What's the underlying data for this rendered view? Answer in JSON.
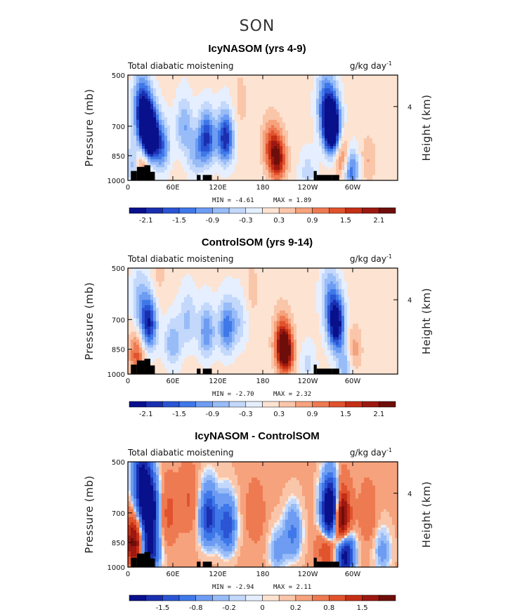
{
  "main_title": "SON",
  "chart_data": [
    {
      "type": "heatmap",
      "title": "IcyNASOM (yrs 4-9)",
      "left_label": "Total diabatic moistening",
      "units_base": "g/kg day",
      "units_exp": "-1",
      "ylabel": "Pressure (mb)",
      "ylabel_right": "Height (km)",
      "x_ticks": [
        "0",
        "60E",
        "120E",
        "180",
        "120W",
        "60W"
      ],
      "y_ticks": [
        "500",
        "700",
        "850",
        "1000"
      ],
      "right_ticks": [
        "4"
      ],
      "min_text": "MIN =   -4.61",
      "max_text": "MAX =    1.89",
      "colorbar_labels": [
        "-2.1",
        "-1.5",
        "-0.9",
        "-0.3",
        "0.3",
        "0.9",
        "1.5",
        "2.1"
      ],
      "blobs": [
        {
          "lon": 28,
          "p": 740,
          "value": -4.6
        },
        {
          "lon": 18,
          "p": 620,
          "value": -2.0
        },
        {
          "lon": 8,
          "p": 900,
          "value": -1.0
        },
        {
          "lon": 20,
          "p": 880,
          "value": 1.4
        },
        {
          "lon": 45,
          "p": 800,
          "value": -1.5
        },
        {
          "lon": 75,
          "p": 700,
          "value": -1.0
        },
        {
          "lon": 105,
          "p": 760,
          "value": -2.0
        },
        {
          "lon": 130,
          "p": 760,
          "value": -2.2
        },
        {
          "lon": 90,
          "p": 850,
          "value": -0.8
        },
        {
          "lon": 200,
          "p": 870,
          "value": 1.9
        },
        {
          "lon": 190,
          "p": 790,
          "value": 1.0
        },
        {
          "lon": 272,
          "p": 700,
          "value": -4.0
        },
        {
          "lon": 262,
          "p": 600,
          "value": -1.2
        },
        {
          "lon": 287,
          "p": 870,
          "value": 1.3
        },
        {
          "lon": 297,
          "p": 930,
          "value": -1.8
        },
        {
          "lon": 240,
          "p": 950,
          "value": -0.6
        },
        {
          "lon": 150,
          "p": 600,
          "value": 0.3
        },
        {
          "lon": 320,
          "p": 880,
          "value": 0.5
        }
      ]
    },
    {
      "type": "heatmap",
      "title": "ControlSOM (yrs 9-14)",
      "left_label": "Total diabatic moistening",
      "units_base": "g/kg day",
      "units_exp": "-1",
      "ylabel": "Pressure (mb)",
      "ylabel_right": "Height (km)",
      "x_ticks": [
        "0",
        "60E",
        "120E",
        "180",
        "120W",
        "60W"
      ],
      "y_ticks": [
        "500",
        "700",
        "850",
        "1000"
      ],
      "right_ticks": [
        "4"
      ],
      "min_text": "MIN =   -2.70",
      "max_text": "MAX =    2.32",
      "colorbar_labels": [
        "-2.1",
        "-1.5",
        "-0.9",
        "-0.3",
        "0.3",
        "0.9",
        "1.5",
        "2.1"
      ],
      "blobs": [
        {
          "lon": 28,
          "p": 720,
          "value": -2.2
        },
        {
          "lon": 15,
          "p": 620,
          "value": -0.8
        },
        {
          "lon": 12,
          "p": 880,
          "value": 1.2
        },
        {
          "lon": 60,
          "p": 820,
          "value": -1.0
        },
        {
          "lon": 80,
          "p": 700,
          "value": -0.8
        },
        {
          "lon": 105,
          "p": 760,
          "value": -1.3
        },
        {
          "lon": 132,
          "p": 740,
          "value": -1.5
        },
        {
          "lon": 150,
          "p": 700,
          "value": -0.6
        },
        {
          "lon": 210,
          "p": 870,
          "value": 2.3
        },
        {
          "lon": 205,
          "p": 790,
          "value": 1.0
        },
        {
          "lon": 278,
          "p": 720,
          "value": -2.7
        },
        {
          "lon": 268,
          "p": 600,
          "value": -0.9
        },
        {
          "lon": 300,
          "p": 860,
          "value": 0.8
        },
        {
          "lon": 290,
          "p": 940,
          "value": -1.1
        },
        {
          "lon": 240,
          "p": 940,
          "value": -0.5
        },
        {
          "lon": 165,
          "p": 580,
          "value": 0.3
        },
        {
          "lon": 40,
          "p": 540,
          "value": 0.3
        }
      ]
    },
    {
      "type": "heatmap",
      "title": "IcyNASOM - ControlSOM",
      "left_label": "Total diabatic moistening",
      "units_base": "g/kg day",
      "units_exp": "-1",
      "ylabel": "Pressure (mb)",
      "ylabel_right": "Height (km)",
      "x_ticks": [
        "0",
        "60E",
        "120E",
        "180",
        "120W",
        "60W"
      ],
      "y_ticks": [
        "500",
        "700",
        "850",
        "1000"
      ],
      "right_ticks": [
        "4"
      ],
      "min_text": "MIN =   -2.94",
      "max_text": "MAX =    2.11",
      "colorbar_labels": [
        "-1.5",
        "-0.8",
        "-0.2",
        "0",
        "0.2",
        "0.8",
        "1.5"
      ],
      "blobs": [
        {
          "lon": 28,
          "p": 680,
          "value": -2.6
        },
        {
          "lon": 18,
          "p": 560,
          "value": -1.6
        },
        {
          "lon": 8,
          "p": 850,
          "value": 1.5
        },
        {
          "lon": 30,
          "p": 900,
          "value": -1.6
        },
        {
          "lon": 55,
          "p": 700,
          "value": 0.5
        },
        {
          "lon": 80,
          "p": 640,
          "value": 0.4
        },
        {
          "lon": 108,
          "p": 720,
          "value": -1.4
        },
        {
          "lon": 132,
          "p": 760,
          "value": -1.2
        },
        {
          "lon": 170,
          "p": 700,
          "value": 0.3
        },
        {
          "lon": 220,
          "p": 800,
          "value": -0.7
        },
        {
          "lon": 200,
          "p": 900,
          "value": -0.4
        },
        {
          "lon": 270,
          "p": 690,
          "value": -2.9
        },
        {
          "lon": 285,
          "p": 730,
          "value": 2.1
        },
        {
          "lon": 290,
          "p": 920,
          "value": -2.0
        },
        {
          "lon": 265,
          "p": 880,
          "value": 0.8
        },
        {
          "lon": 320,
          "p": 700,
          "value": 0.3
        },
        {
          "lon": 340,
          "p": 900,
          "value": -0.4
        }
      ]
    }
  ]
}
